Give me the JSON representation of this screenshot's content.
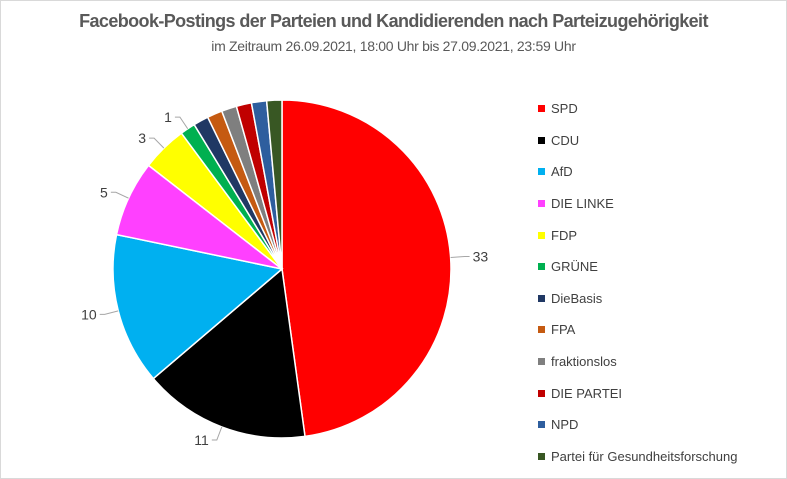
{
  "chart_data": {
    "type": "pie",
    "title": "Facebook-Postings der Parteien und Kandidierenden nach Parteizugehörigkeit",
    "subtitle": "im Zeitraum 26.09.2021, 18:00 Uhr bis 27.09.2021, 23:59 Uhr",
    "categories": [
      "SPD",
      "CDU",
      "AfD",
      "DIE LINKE",
      "FDP",
      "GRÜNE",
      "DieBasis",
      "FPA",
      "fraktionslos",
      "DIE PARTEI",
      "NPD",
      "Partei für Gesundheitsforschung"
    ],
    "values": [
      33,
      11,
      10,
      5,
      3,
      1,
      1,
      1,
      1,
      1,
      1,
      1
    ],
    "data_labels": [
      "33",
      "11",
      "10",
      "5",
      "3",
      "1",
      "",
      "",
      "",
      "",
      "",
      ""
    ],
    "colors": [
      "#ff0000",
      "#000000",
      "#00b0f0",
      "#ff40ff",
      "#ffff00",
      "#00b050",
      "#203864",
      "#c55a11",
      "#7f7f7f",
      "#c00000",
      "#2e5e9e",
      "#385723"
    ],
    "legend_position": "right"
  }
}
